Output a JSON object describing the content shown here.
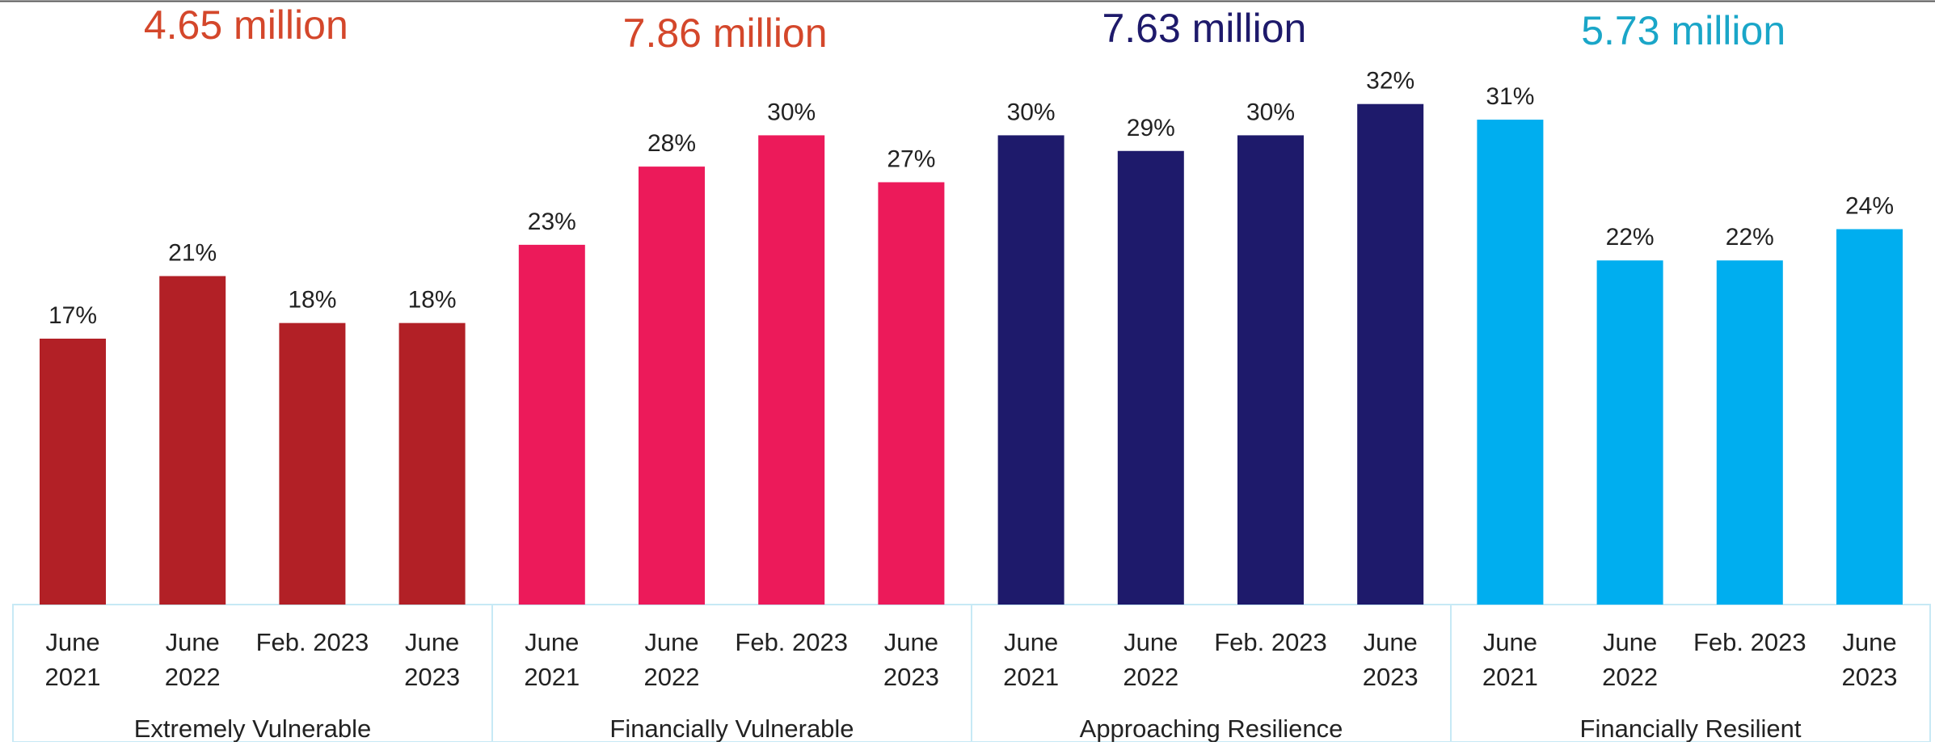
{
  "chart_data": {
    "type": "bar",
    "ylim": [
      0,
      34
    ],
    "value_suffix": "%",
    "group_labels": [
      "Extremely Vulnerable",
      "Financially Vulnerable",
      "Approaching Resilience",
      "Financially Resilient"
    ],
    "group_totals": [
      "4.65 million",
      "7.86 million",
      "7.63 million",
      "5.73 million"
    ],
    "categories": [
      [
        "June",
        "2021"
      ],
      [
        "June",
        "2022"
      ],
      [
        "Feb. 2023",
        ""
      ],
      [
        "June",
        "2023"
      ]
    ],
    "series": [
      {
        "color": "#B22026",
        "total_color": "#D4472B",
        "values": [
          17,
          21,
          18,
          18
        ]
      },
      {
        "color": "#EC1A5A",
        "total_color": "#D4472B",
        "values": [
          23,
          28,
          30,
          27
        ]
      },
      {
        "color": "#1E1A6B",
        "total_color": "#1E1A6B",
        "values": [
          30,
          29,
          30,
          32
        ]
      },
      {
        "color": "#00AEEF",
        "total_color": "#1AA6C8",
        "values": [
          31,
          22,
          22,
          24
        ]
      }
    ],
    "frame_color": "#C7E9F5",
    "grid": false,
    "legend": "none"
  }
}
